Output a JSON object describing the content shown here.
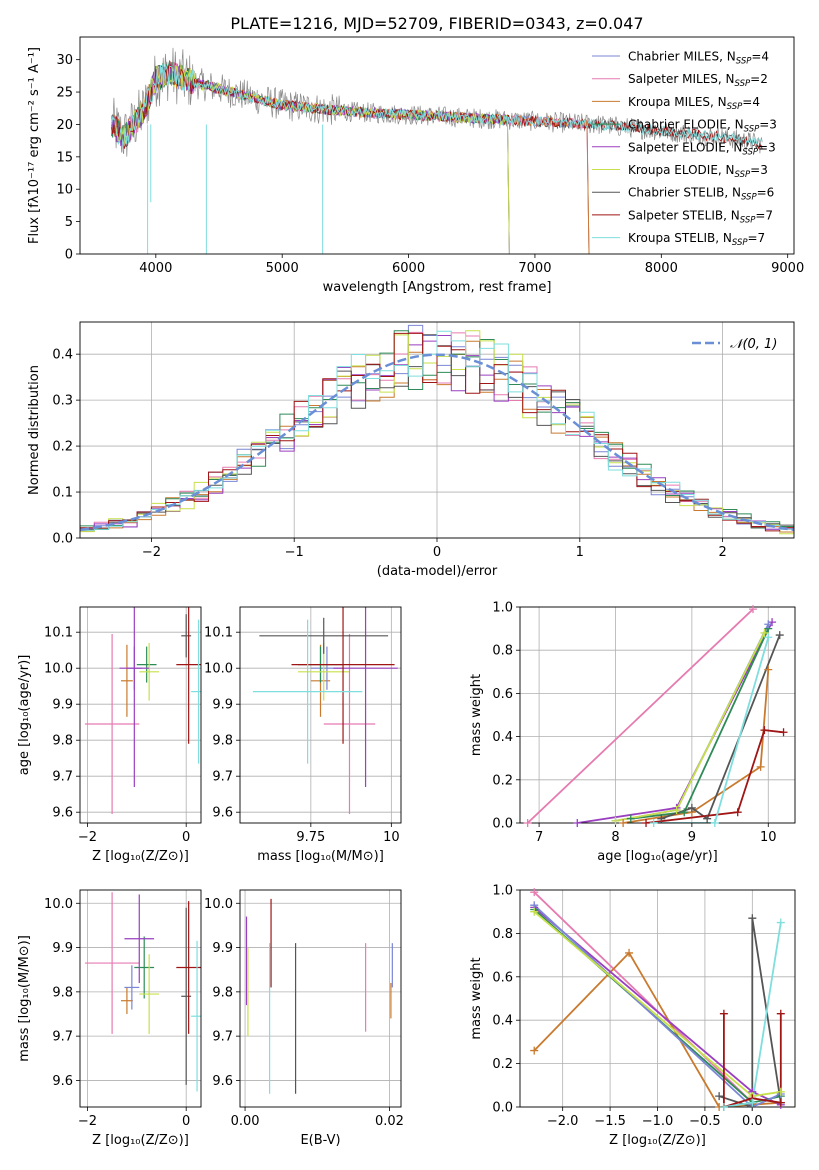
{
  "figure": {
    "title": "PLATE=1216, MJD=52709, FIBERID=0343, z=0.047"
  },
  "colors": {
    "c1": "#7b86d6",
    "c2": "#e67bb0",
    "c3": "#c97a2e",
    "c4": "#2e8b57",
    "c5": "#9a3fbf",
    "c6": "#c7e04a",
    "c7": "#555555",
    "c8": "#a01515",
    "c9": "#7fdede",
    "normal": "#6a8fd6"
  },
  "chart_data": [
    {
      "id": "spectrum",
      "type": "line",
      "xlabel": "wavelength [Angstrom, rest frame]",
      "ylabel": "Flux [fλ10⁻¹⁷ erg cm⁻² s⁻¹ A⁻¹]",
      "xlim": [
        3400,
        9050
      ],
      "ylim": [
        0,
        33.5
      ],
      "xticks": [
        4000,
        5000,
        6000,
        7000,
        8000,
        9000
      ],
      "yticks": [
        0,
        5,
        10,
        15,
        20,
        25,
        30
      ],
      "continuum": {
        "x": [
          3650,
          3750,
          3900,
          4000,
          4100,
          4300,
          4600,
          5000,
          5500,
          6000,
          6500,
          7000,
          7500,
          8000,
          8500,
          8800
        ],
        "y": [
          20,
          18,
          22,
          27,
          28,
          26.5,
          25,
          23,
          22,
          21.5,
          21,
          20.5,
          20,
          19,
          18,
          17
        ]
      },
      "series": [
        {
          "name": "Chabrier MILES, N",
          "sub": "SSP",
          "suffix": "=4",
          "color": "c1",
          "xmax": 7420
        },
        {
          "name": "Salpeter MILES, N",
          "sub": "SSP",
          "suffix": "=2",
          "color": "c2",
          "xmax": 7420
        },
        {
          "name": "Kroupa MILES, N",
          "sub": "SSP",
          "suffix": "=4",
          "color": "c3",
          "xmax": 7420
        },
        {
          "name": "Chabrier ELODIE, N",
          "sub": "SSP",
          "suffix": "=3",
          "color": "c4",
          "xmax": 6790
        },
        {
          "name": "Salpeter ELODIE, N",
          "sub": "SSP",
          "suffix": "=3",
          "color": "c5",
          "xmax": 6790
        },
        {
          "name": "Kroupa ELODIE, N",
          "sub": "SSP",
          "suffix": "=3",
          "color": "c6",
          "xmax": 6790
        },
        {
          "name": "Chabrier STELIB, N",
          "sub": "SSP",
          "suffix": "=6",
          "color": "c7",
          "xmax": 8800
        },
        {
          "name": "Salpeter STELIB, N",
          "sub": "SSP",
          "suffix": "=7",
          "color": "c8",
          "xmax": 8800
        },
        {
          "name": "Kroupa STELIB, N",
          "sub": "SSP",
          "suffix": "=7",
          "color": "c9",
          "xmax": 8800
        }
      ],
      "legend": "top-right",
      "grid": false
    },
    {
      "id": "residuals",
      "type": "histogram",
      "xlabel": "(data-model)/error",
      "ylabel": "Normed distribution",
      "xlim": [
        -2.5,
        2.5
      ],
      "ylim": [
        0,
        0.47
      ],
      "xticks": [
        -2,
        -1,
        0,
        1,
        2
      ],
      "yticks": [
        0.0,
        0.1,
        0.2,
        0.3,
        0.4
      ],
      "bin_width": 0.1,
      "legend_label": "𝒩(0, 1)",
      "legend": "top-right",
      "grid": true
    },
    {
      "id": "age_vs_Z",
      "type": "errorbar",
      "xlabel": "Z [log₁₀(Z/Z⊙)]",
      "ylabel": "age  [log₁₀(age/yr)]",
      "xlim": [
        -2.15,
        0.3
      ],
      "ylim": [
        9.57,
        10.17
      ],
      "xticks": [
        -2,
        0
      ],
      "yticks": [
        9.6,
        9.7,
        9.8,
        9.9,
        10.0,
        10.1
      ],
      "grid": true,
      "points": [
        {
          "x": -1.2,
          "y": 9.965,
          "xerr": 0.12,
          "yerr": 0.1,
          "color": "c3"
        },
        {
          "x": -1.05,
          "y": 10.0,
          "xerr": 0.15,
          "yerr": 0.06,
          "color": "c1"
        },
        {
          "x": -0.8,
          "y": 10.01,
          "xerr": 0.2,
          "yerr": 0.05,
          "color": "c4"
        },
        {
          "x": -0.75,
          "y": 9.99,
          "xerr": 0.2,
          "yerr": 0.08,
          "color": "c6"
        },
        {
          "x": -1.5,
          "y": 9.845,
          "xerr": 0.55,
          "yerr": 0.25,
          "color": "c2"
        },
        {
          "x": -1.05,
          "y": 10.0,
          "xerr": 0.3,
          "yerr": 0.33,
          "color": "c5"
        },
        {
          "x": 0.0,
          "y": 10.09,
          "xerr": 0.1,
          "yerr": 0.06,
          "color": "c7"
        },
        {
          "x": 0.05,
          "y": 10.01,
          "xerr": 0.25,
          "yerr": 0.22,
          "color": "c8"
        },
        {
          "x": 0.25,
          "y": 9.935,
          "xerr": 0.15,
          "yerr": 0.2,
          "color": "c9"
        }
      ]
    },
    {
      "id": "age_vs_mass",
      "type": "errorbar",
      "xlabel": "mass [log₁₀(M/M⊙)]",
      "ylabel": "",
      "xlim": [
        9.53,
        10.03
      ],
      "ylim": [
        9.57,
        10.17
      ],
      "xticks": [
        9.75,
        10.0
      ],
      "yticks": [
        9.6,
        9.7,
        9.8,
        9.9,
        10.0,
        10.1
      ],
      "grid": true,
      "points": [
        {
          "x": 9.78,
          "y": 9.965,
          "xerr": 0.03,
          "yerr": 0.1,
          "color": "c3"
        },
        {
          "x": 9.8,
          "y": 10.0,
          "xerr": 0.05,
          "yerr": 0.06,
          "color": "c1"
        },
        {
          "x": 9.78,
          "y": 10.01,
          "xerr": 0.07,
          "yerr": 0.05,
          "color": "c4"
        },
        {
          "x": 9.79,
          "y": 9.99,
          "xerr": 0.08,
          "yerr": 0.08,
          "color": "c6"
        },
        {
          "x": 9.87,
          "y": 9.845,
          "xerr": 0.08,
          "yerr": 0.25,
          "color": "c2"
        },
        {
          "x": 9.92,
          "y": 10.0,
          "xerr": 0.1,
          "yerr": 0.33,
          "color": "c5"
        },
        {
          "x": 9.79,
          "y": 10.09,
          "xerr": 0.2,
          "yerr": 0.05,
          "color": "c7"
        },
        {
          "x": 9.85,
          "y": 10.01,
          "xerr": 0.16,
          "yerr": 0.22,
          "color": "c8"
        },
        {
          "x": 9.74,
          "y": 9.935,
          "xerr": 0.17,
          "yerr": 0.2,
          "color": "c9"
        }
      ]
    },
    {
      "id": "mass_weight_vs_age",
      "type": "line",
      "xlabel": "age  [log₁₀(age/yr)]",
      "ylabel": "mass weight",
      "xlim": [
        6.75,
        10.35
      ],
      "ylim": [
        0,
        1.0
      ],
      "xticks": [
        7,
        8,
        9,
        10
      ],
      "yticks": [
        0.0,
        0.2,
        0.4,
        0.6,
        0.8,
        1.0
      ],
      "grid": true,
      "series": [
        {
          "color": "c2",
          "x": [
            6.85,
            9.8
          ],
          "y": [
            0.0,
            0.99
          ]
        },
        {
          "color": "c3",
          "x": [
            8.1,
            9.0,
            9.9,
            10.0
          ],
          "y": [
            0.0,
            0.05,
            0.26,
            0.71
          ]
        },
        {
          "color": "c5",
          "x": [
            7.5,
            8.8,
            10.05
          ],
          "y": [
            0.0,
            0.07,
            0.93
          ]
        },
        {
          "color": "c4",
          "x": [
            8.2,
            8.9,
            10.0
          ],
          "y": [
            0.02,
            0.05,
            0.9
          ]
        },
        {
          "color": "c1",
          "x": [
            8.0,
            8.8,
            10.0
          ],
          "y": [
            0.01,
            0.06,
            0.92
          ]
        },
        {
          "color": "c6",
          "x": [
            8.0,
            8.8,
            9.95
          ],
          "y": [
            0.01,
            0.06,
            0.88
          ]
        },
        {
          "color": "c7",
          "x": [
            8.6,
            9.0,
            9.2,
            10.15
          ],
          "y": [
            0.02,
            0.07,
            0.02,
            0.87
          ]
        },
        {
          "color": "c8",
          "x": [
            8.4,
            9.6,
            9.95,
            10.2
          ],
          "y": [
            0.0,
            0.05,
            0.43,
            0.42
          ]
        },
        {
          "color": "c9",
          "x": [
            8.5,
            9.3,
            10.0
          ],
          "y": [
            0.0,
            0.0,
            0.86
          ]
        }
      ]
    },
    {
      "id": "mass_vs_Z",
      "type": "errorbar",
      "xlabel": "Z [log₁₀(Z/Z⊙)]",
      "ylabel": "mass [log₁₀(M/M⊙)]",
      "xlim": [
        -2.15,
        0.3
      ],
      "ylim": [
        9.54,
        10.03
      ],
      "xticks": [
        -2,
        0
      ],
      "yticks": [
        9.6,
        9.7,
        9.8,
        9.9,
        10.0
      ],
      "grid": true,
      "points": [
        {
          "x": -1.2,
          "y": 9.78,
          "xerr": 0.12,
          "yerr": 0.03,
          "color": "c3"
        },
        {
          "x": -1.1,
          "y": 9.81,
          "xerr": 0.15,
          "yerr": 0.05,
          "color": "c1"
        },
        {
          "x": -0.85,
          "y": 9.855,
          "xerr": 0.2,
          "yerr": 0.07,
          "color": "c4"
        },
        {
          "x": -0.75,
          "y": 9.795,
          "xerr": 0.2,
          "yerr": 0.09,
          "color": "c6"
        },
        {
          "x": -1.5,
          "y": 9.865,
          "xerr": 0.55,
          "yerr": 0.16,
          "color": "c2"
        },
        {
          "x": -0.95,
          "y": 9.92,
          "xerr": 0.3,
          "yerr": 0.1,
          "color": "c5"
        },
        {
          "x": 0.0,
          "y": 9.79,
          "xerr": 0.1,
          "yerr": 0.2,
          "color": "c7"
        },
        {
          "x": 0.05,
          "y": 9.855,
          "xerr": 0.25,
          "yerr": 0.15,
          "color": "c8"
        },
        {
          "x": 0.22,
          "y": 9.745,
          "xerr": 0.12,
          "yerr": 0.17,
          "color": "c9"
        }
      ]
    },
    {
      "id": "mass_vs_ebv",
      "type": "errorbar",
      "xlabel": "E(B-V)",
      "ylabel": "",
      "xlim": [
        -0.0007,
        0.0216
      ],
      "ylim": [
        9.54,
        10.03
      ],
      "xticks": [
        0.0,
        0.02
      ],
      "xticklabels": [
        "0.00",
        "0.02"
      ],
      "yticks": [
        9.6,
        9.7,
        9.8,
        9.9,
        10.0
      ],
      "grid": true,
      "points": [
        {
          "x": 0.0002,
          "y": 9.87,
          "xerr": 0,
          "yerr": 0.1,
          "color": "c5"
        },
        {
          "x": 0.0004,
          "y": 9.8,
          "xerr": 0,
          "yerr": 0.1,
          "color": "c6"
        },
        {
          "x": 0.0036,
          "y": 9.91,
          "xerr": 0,
          "yerr": 0.1,
          "color": "c8"
        },
        {
          "x": 0.0034,
          "y": 9.74,
          "xerr": 0,
          "yerr": 0.17,
          "color": "c9"
        },
        {
          "x": 0.007,
          "y": 9.74,
          "xerr": 0,
          "yerr": 0.17,
          "color": "c7"
        },
        {
          "x": 0.0167,
          "y": 9.81,
          "xerr": 0,
          "yerr": 0.1,
          "color": "c2"
        },
        {
          "x": 0.0202,
          "y": 9.78,
          "xerr": 0,
          "yerr": 0.04,
          "color": "c3"
        },
        {
          "x": 0.0204,
          "y": 9.86,
          "xerr": 0,
          "yerr": 0.05,
          "color": "c1"
        }
      ]
    },
    {
      "id": "mass_weight_vs_Z",
      "type": "line",
      "xlabel": "Z [log₁₀(Z/Z⊙)]",
      "ylabel": "mass weight",
      "xlim": [
        -2.45,
        0.45
      ],
      "ylim": [
        0,
        1.0
      ],
      "xticks": [
        -2.0,
        -1.5,
        -1.0,
        -0.5,
        0.0
      ],
      "xticklabels": [
        "−2.0",
        "−1.5",
        "−1.0",
        "−0.5",
        "0.0"
      ],
      "yticks": [
        0.0,
        0.2,
        0.4,
        0.6,
        0.8,
        1.0
      ],
      "grid": true,
      "series": [
        {
          "color": "c2",
          "x": [
            -2.3,
            0.0
          ],
          "y": [
            0.99,
            0.02
          ]
        },
        {
          "color": "c3",
          "x": [
            -2.3,
            -1.3,
            -0.35,
            0.3
          ],
          "y": [
            0.26,
            0.71,
            0.0,
            0.02
          ]
        },
        {
          "color": "c5",
          "x": [
            -2.3,
            0.0,
            0.3
          ],
          "y": [
            0.92,
            0.07,
            0.01
          ]
        },
        {
          "color": "c4",
          "x": [
            -2.3,
            0.0,
            0.3
          ],
          "y": [
            0.91,
            0.02,
            0.05
          ]
        },
        {
          "color": "c1",
          "x": [
            -2.3,
            0.0,
            0.3
          ],
          "y": [
            0.93,
            0.0,
            0.06
          ]
        },
        {
          "color": "c6",
          "x": [
            -2.3,
            0.0,
            0.3
          ],
          "y": [
            0.9,
            0.05,
            0.07
          ]
        },
        {
          "color": "c7",
          "x": [
            -0.35,
            0.0,
            0.0,
            0.3
          ],
          "y": [
            0.05,
            0.0,
            0.87,
            0.02
          ]
        },
        {
          "color": "c8",
          "x": [
            -0.3,
            -0.3,
            0.0,
            0.3,
            0.3
          ],
          "y": [
            0.43,
            0.0,
            0.04,
            0.02,
            0.43
          ]
        },
        {
          "color": "c9",
          "x": [
            -0.3,
            0.0,
            0.3
          ],
          "y": [
            0.0,
            0.02,
            0.85
          ]
        }
      ]
    }
  ]
}
